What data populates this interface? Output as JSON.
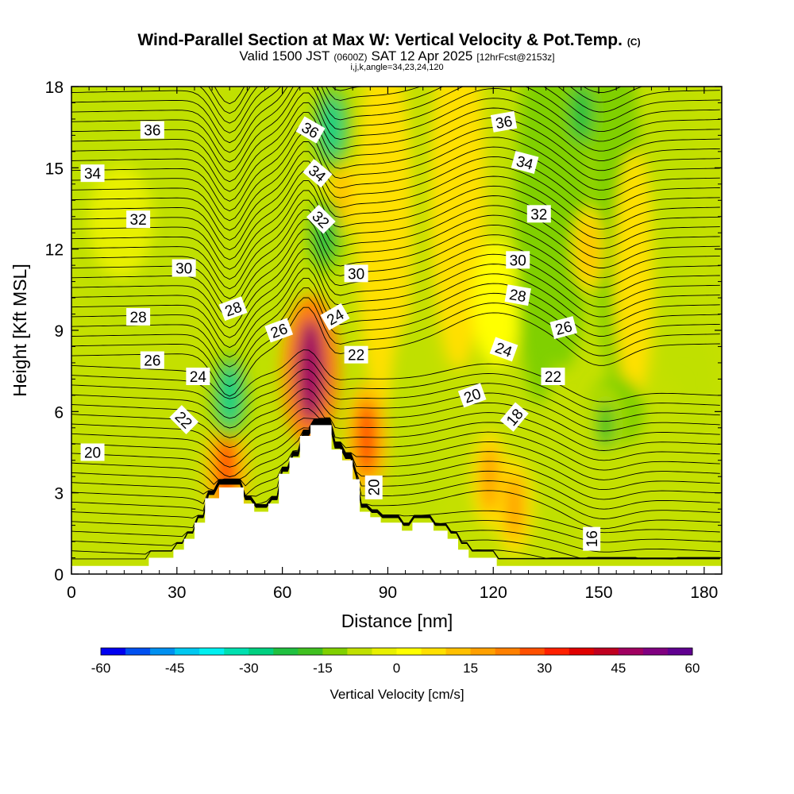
{
  "header": {
    "title": "Wind-Parallel Section at Max W: Vertical Velocity & Pot.Temp.",
    "title_mark": "(C)",
    "subtitle_pre": "Valid 1500 JST",
    "subtitle_utc": "(0600Z)",
    "subtitle_date": "SAT 12 Apr 2025",
    "subtitle_fcst": "[12hrFcst@2153z]",
    "indices": "i,j,k,angle=34,23,24,120"
  },
  "chart_data": {
    "type": "heatmap",
    "xlabel": "Distance [nm]",
    "ylabel": "Height [Kft MSL]",
    "xlim": [
      0,
      185
    ],
    "ylim": [
      0,
      18
    ],
    "x_ticks": [
      "0",
      "30",
      "60",
      "90",
      "120",
      "150",
      "180"
    ],
    "y_ticks": [
      "0",
      "3",
      "6",
      "9",
      "12",
      "15",
      "18"
    ],
    "colorbar": {
      "label": "Vertical Velocity [cm/s]",
      "range": [
        -60,
        60
      ],
      "tick_labels": [
        "-60",
        "-45",
        "-30",
        "-15",
        "0",
        "15",
        "30",
        "45",
        "60"
      ],
      "colors": [
        "#0000f0",
        "#0050f0",
        "#0090f0",
        "#00c8f0",
        "#00f0f0",
        "#00e0b0",
        "#00d080",
        "#20c040",
        "#40c020",
        "#80d000",
        "#c0e000",
        "#e8f000",
        "#ffff00",
        "#ffe000",
        "#ffc000",
        "#ffa000",
        "#ff8000",
        "#ff5000",
        "#ff2000",
        "#e00000",
        "#c00020",
        "#a00060",
        "#800080",
        "#600090"
      ]
    },
    "series": [
      {
        "name": "Vertical Velocity",
        "unit": "cm/s"
      },
      {
        "name": "Pot.Temp."
      }
    ],
    "updraft_cores": [
      {
        "x": 68,
        "z": 7.5,
        "w": 45
      },
      {
        "x": 84,
        "z": 5,
        "w": 25
      },
      {
        "x": 44,
        "z": 3.8,
        "w": 25
      },
      {
        "x": 119,
        "z": 3.5,
        "w": 18
      },
      {
        "x": 126,
        "z": 2.5,
        "w": 18
      },
      {
        "x": 77,
        "z": 14,
        "w": 10
      },
      {
        "x": 147,
        "z": 12,
        "w": 12
      }
    ],
    "downdraft_cores": [
      {
        "x": 45,
        "z": 6.6,
        "w": -30
      },
      {
        "x": 74,
        "z": 16.5,
        "w": -30
      },
      {
        "x": 72,
        "z": 12.5,
        "w": -22
      },
      {
        "x": 145,
        "z": 17,
        "w": -25
      },
      {
        "x": 152,
        "z": 5.5,
        "w": -18
      }
    ],
    "terrain_nm_kft": [
      [
        0,
        0.3
      ],
      [
        22,
        0.3
      ],
      [
        22,
        0.6
      ],
      [
        29,
        0.6
      ],
      [
        29,
        0.9
      ],
      [
        32,
        0.9
      ],
      [
        32,
        1.3
      ],
      [
        35,
        1.3
      ],
      [
        35,
        1.9
      ],
      [
        38,
        1.9
      ],
      [
        38,
        2.8
      ],
      [
        42,
        2.8
      ],
      [
        42,
        3.2
      ],
      [
        49,
        3.2
      ],
      [
        49,
        2.6
      ],
      [
        52,
        2.6
      ],
      [
        52,
        2.3
      ],
      [
        56,
        2.3
      ],
      [
        56,
        2.6
      ],
      [
        59,
        2.6
      ],
      [
        59,
        3.7
      ],
      [
        62,
        3.7
      ],
      [
        62,
        4.3
      ],
      [
        65,
        4.3
      ],
      [
        65,
        5.1
      ],
      [
        68,
        5.1
      ],
      [
        68,
        5.5
      ],
      [
        74,
        5.5
      ],
      [
        74,
        4.6
      ],
      [
        77,
        4.6
      ],
      [
        77,
        4.2
      ],
      [
        80,
        4.2
      ],
      [
        80,
        3.5
      ],
      [
        82,
        3.5
      ],
      [
        82,
        2.3
      ],
      [
        85,
        2.3
      ],
      [
        85,
        2.1
      ],
      [
        88,
        2.1
      ],
      [
        88,
        1.9
      ],
      [
        94,
        1.9
      ],
      [
        94,
        1.6
      ],
      [
        97,
        1.6
      ],
      [
        97,
        1.9
      ],
      [
        103,
        1.9
      ],
      [
        103,
        1.6
      ],
      [
        107,
        1.6
      ],
      [
        107,
        1.3
      ],
      [
        110,
        1.3
      ],
      [
        110,
        0.9
      ],
      [
        113,
        0.9
      ],
      [
        113,
        0.6
      ],
      [
        121,
        0.6
      ],
      [
        121,
        0.3
      ],
      [
        185,
        0.3
      ]
    ],
    "theta_labels": [
      {
        "text": "36",
        "x": 23,
        "z": 16.4,
        "rot": 0
      },
      {
        "text": "34",
        "x": 6,
        "z": 14.8,
        "rot": 0
      },
      {
        "text": "32",
        "x": 19,
        "z": 13.1,
        "rot": 0
      },
      {
        "text": "30",
        "x": 32,
        "z": 11.3,
        "rot": 0
      },
      {
        "text": "28",
        "x": 19,
        "z": 9.5,
        "rot": 0
      },
      {
        "text": "26",
        "x": 23,
        "z": 7.9,
        "rot": 0
      },
      {
        "text": "24",
        "x": 36,
        "z": 7.3,
        "rot": 0
      },
      {
        "text": "22",
        "x": 32,
        "z": 5.7,
        "rot": 45
      },
      {
        "text": "20",
        "x": 6,
        "z": 4.5,
        "rot": 0
      },
      {
        "text": "28",
        "x": 46,
        "z": 9.8,
        "rot": -20
      },
      {
        "text": "26",
        "x": 59,
        "z": 9,
        "rot": -20
      },
      {
        "text": "36",
        "x": 68,
        "z": 16.4,
        "rot": 30
      },
      {
        "text": "34",
        "x": 70,
        "z": 14.8,
        "rot": 40
      },
      {
        "text": "32",
        "x": 71,
        "z": 13.1,
        "rot": 45
      },
      {
        "text": "30",
        "x": 81,
        "z": 11.1,
        "rot": 0
      },
      {
        "text": "24",
        "x": 75,
        "z": 9.5,
        "rot": -30
      },
      {
        "text": "22",
        "x": 81,
        "z": 8.1,
        "rot": 0
      },
      {
        "text": "20",
        "x": 86,
        "z": 3.2,
        "rot": -90
      },
      {
        "text": "36",
        "x": 123,
        "z": 16.7,
        "rot": -10
      },
      {
        "text": "34",
        "x": 129,
        "z": 15.2,
        "rot": 15
      },
      {
        "text": "32",
        "x": 133,
        "z": 13.3,
        "rot": 0
      },
      {
        "text": "30",
        "x": 127,
        "z": 11.6,
        "rot": 0
      },
      {
        "text": "28",
        "x": 127,
        "z": 10.3,
        "rot": 10
      },
      {
        "text": "26",
        "x": 140,
        "z": 9.1,
        "rot": -15
      },
      {
        "text": "24",
        "x": 123,
        "z": 8.3,
        "rot": 20
      },
      {
        "text": "22",
        "x": 137,
        "z": 7.3,
        "rot": 0
      },
      {
        "text": "20",
        "x": 114,
        "z": 6.6,
        "rot": -20
      },
      {
        "text": "18",
        "x": 126,
        "z": 5.8,
        "rot": -50
      },
      {
        "text": "16",
        "x": 148,
        "z": 1.3,
        "rot": -90
      }
    ]
  }
}
